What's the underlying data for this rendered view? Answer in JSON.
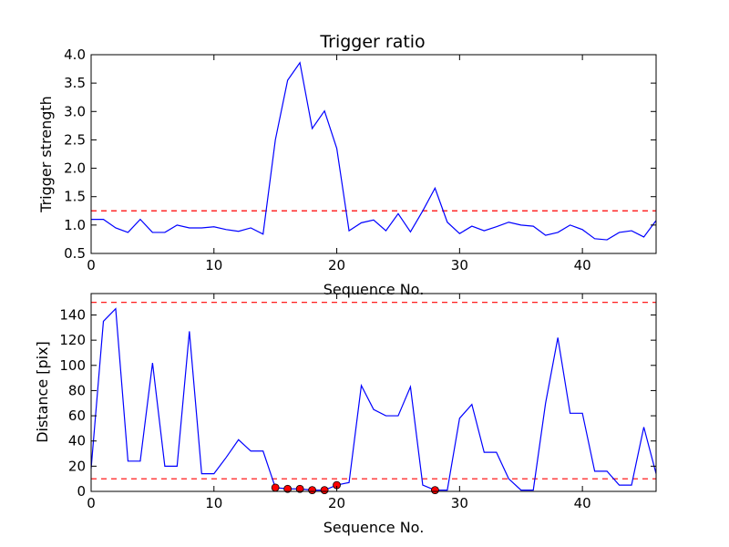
{
  "chart_data": [
    {
      "type": "line",
      "title": "Trigger ratio",
      "xlabel": "Sequence No.",
      "ylabel": "Trigger strength",
      "xlim": [
        0,
        46
      ],
      "ylim": [
        0.5,
        4.0
      ],
      "xticks": [
        0,
        10,
        20,
        30,
        40
      ],
      "yticks": [
        0.5,
        1.0,
        1.5,
        2.0,
        2.5,
        3.0,
        3.5,
        4.0
      ],
      "ytick_labels": [
        "0.5",
        "1.0",
        "1.5",
        "2.0",
        "2.5",
        "3.0",
        "3.5",
        "4.0"
      ],
      "grid": false,
      "series": [
        {
          "color": "#0000ff",
          "x": [
            0,
            1,
            2,
            3,
            4,
            5,
            6,
            7,
            8,
            9,
            10,
            11,
            12,
            13,
            14,
            15,
            16,
            17,
            18,
            19,
            20,
            21,
            22,
            23,
            24,
            25,
            26,
            27,
            28,
            29,
            30,
            31,
            32,
            33,
            34,
            35,
            36,
            37,
            38,
            39,
            40,
            41,
            42,
            43,
            44,
            45,
            46
          ],
          "y": [
            1.1,
            1.1,
            0.95,
            0.87,
            1.1,
            0.87,
            0.87,
            1.0,
            0.95,
            0.95,
            0.97,
            0.92,
            0.89,
            0.95,
            0.84,
            2.5,
            3.55,
            3.86,
            2.7,
            3.01,
            2.35,
            0.9,
            1.04,
            1.09,
            0.9,
            1.2,
            0.88,
            1.25,
            1.65,
            1.05,
            0.85,
            0.98,
            0.9,
            0.97,
            1.05,
            1.0,
            0.98,
            0.82,
            0.87,
            1.0,
            0.92,
            0.76,
            0.74,
            0.87,
            0.9,
            0.79,
            1.08
          ]
        }
      ],
      "threshold": {
        "y": 1.25,
        "color": "#ff0000",
        "style": "dashed"
      }
    },
    {
      "type": "line",
      "xlabel": "Sequence No.",
      "ylabel": "Distance [pix]",
      "xlim": [
        0,
        46
      ],
      "ylim": [
        0,
        157
      ],
      "xticks": [
        0,
        10,
        20,
        30,
        40
      ],
      "yticks": [
        0,
        20,
        40,
        60,
        80,
        100,
        120,
        140
      ],
      "ytick_labels": [
        "0",
        "20",
        "40",
        "60",
        "80",
        "100",
        "120",
        "140"
      ],
      "grid": false,
      "series": [
        {
          "color": "#0000ff",
          "x": [
            0,
            1,
            2,
            3,
            4,
            5,
            6,
            7,
            8,
            9,
            10,
            11,
            12,
            13,
            14,
            15,
            16,
            17,
            18,
            19,
            20,
            21,
            22,
            23,
            24,
            25,
            26,
            27,
            28,
            29,
            30,
            31,
            32,
            33,
            34,
            35,
            36,
            37,
            38,
            39,
            40,
            41,
            42,
            43,
            44,
            45,
            46
          ],
          "y": [
            18,
            135,
            145,
            24,
            24,
            102,
            20,
            20,
            127,
            14,
            14,
            27,
            41,
            32,
            32,
            3,
            2,
            2,
            1,
            1,
            5,
            7,
            84,
            65,
            60,
            60,
            83,
            5,
            1,
            1,
            58,
            69,
            31,
            31,
            10,
            1,
            1,
            70,
            122,
            62,
            62,
            16,
            16,
            5,
            5,
            51,
            14
          ]
        }
      ],
      "markers": {
        "color": "#ff0000",
        "points": [
          {
            "x": 15,
            "y": 3
          },
          {
            "x": 16,
            "y": 2
          },
          {
            "x": 17,
            "y": 2
          },
          {
            "x": 18,
            "y": 1
          },
          {
            "x": 19,
            "y": 1
          },
          {
            "x": 20,
            "y": 5
          },
          {
            "x": 28,
            "y": 1
          }
        ]
      },
      "thresholds": [
        {
          "y": 150,
          "color": "#ff0000",
          "style": "dashed"
        },
        {
          "y": 10,
          "color": "#ff0000",
          "style": "dashed"
        }
      ]
    }
  ]
}
